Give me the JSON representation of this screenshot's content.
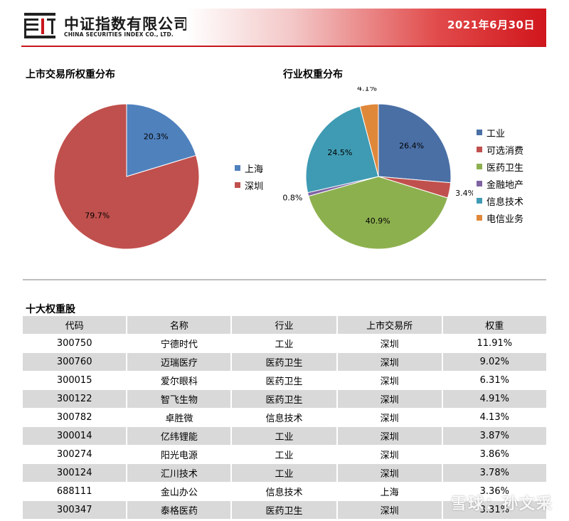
{
  "header": {
    "company_cn": "中证指数有限公司",
    "company_en": "CHINA SECURITIES INDEX CO., LTD.",
    "date": "2021年6月30日",
    "accent_color": "#d0161c"
  },
  "exchange_section": {
    "title": "上市交易所权重分布",
    "chart_data": {
      "type": "pie",
      "title": "",
      "slices": [
        {
          "name": "上海",
          "value": 20.3,
          "label": "20.3%",
          "color": "#4f81bd"
        },
        {
          "name": "深圳",
          "value": 79.7,
          "label": "79.7%",
          "color": "#c0504d"
        }
      ]
    }
  },
  "industry_section": {
    "title": "行业权重分布",
    "chart_data": {
      "type": "pie",
      "title": "",
      "slices": [
        {
          "name": "工业",
          "value": 26.4,
          "label": "26.4%",
          "color": "#4a6fa5"
        },
        {
          "name": "可选消费",
          "value": 3.4,
          "label": "3.4%",
          "color": "#c0504d"
        },
        {
          "name": "医药卫生",
          "value": 40.9,
          "label": "40.9%",
          "color": "#8db04f"
        },
        {
          "name": "金融地产",
          "value": 0.8,
          "label": "0.8%",
          "color": "#7f63a2"
        },
        {
          "name": "信息技术",
          "value": 24.5,
          "label": "24.5%",
          "color": "#3f9bb3"
        },
        {
          "name": "电信业务",
          "value": 4.1,
          "label": "4.1%",
          "color": "#e0883a"
        }
      ]
    }
  },
  "top10": {
    "title": "十大权重股",
    "columns": [
      "代码",
      "名称",
      "行业",
      "上市交易所",
      "权重"
    ],
    "rows": [
      [
        "300750",
        "宁德时代",
        "工业",
        "深圳",
        "11.91%"
      ],
      [
        "300760",
        "迈瑞医疗",
        "医药卫生",
        "深圳",
        "9.02%"
      ],
      [
        "300015",
        "爱尔眼科",
        "医药卫生",
        "深圳",
        "6.31%"
      ],
      [
        "300122",
        "智飞生物",
        "医药卫生",
        "深圳",
        "4.91%"
      ],
      [
        "300782",
        "卓胜微",
        "信息技术",
        "深圳",
        "4.13%"
      ],
      [
        "300014",
        "亿纬锂能",
        "工业",
        "深圳",
        "3.87%"
      ],
      [
        "300274",
        "阳光电源",
        "工业",
        "深圳",
        "3.86%"
      ],
      [
        "300124",
        "汇川技术",
        "工业",
        "深圳",
        "3.78%"
      ],
      [
        "688111",
        "金山办公",
        "信息技术",
        "上海",
        "3.36%"
      ],
      [
        "300347",
        "泰格医药",
        "医药卫生",
        "深圳",
        "3.31%"
      ]
    ]
  },
  "watermark": "雪球：孙文采"
}
